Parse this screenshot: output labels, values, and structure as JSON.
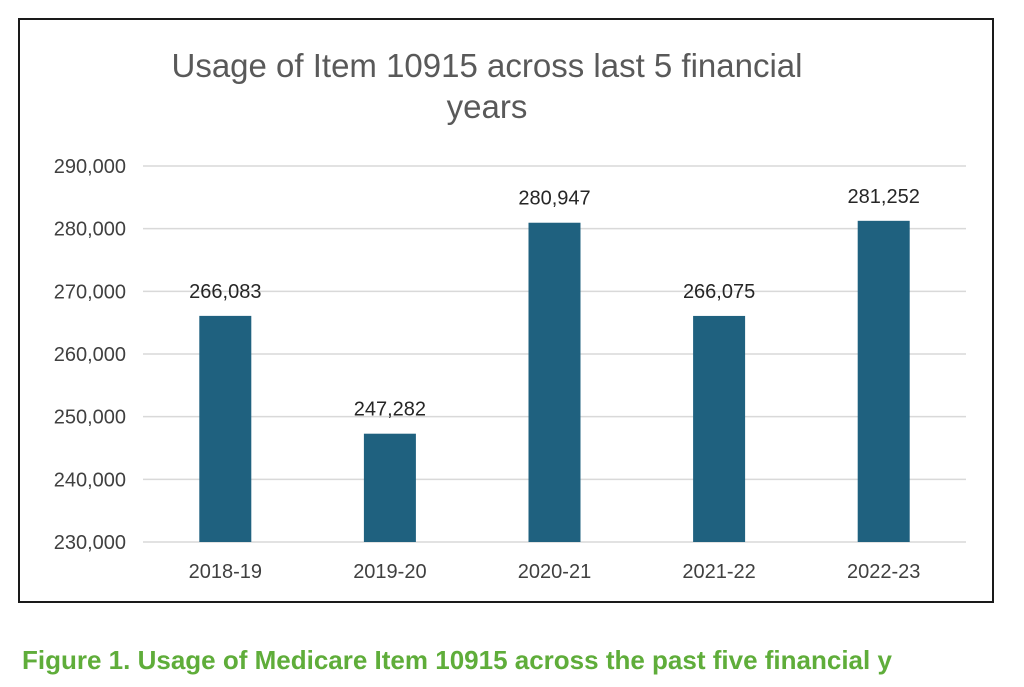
{
  "chart_data": {
    "type": "bar",
    "title": "Usage of Item 10915 across last 5 financial years",
    "title_lines": [
      "Usage of Item 10915 across last 5 financial",
      "years"
    ],
    "categories": [
      "2018-19",
      "2019-20",
      "2020-21",
      "2021-22",
      "2022-23"
    ],
    "values": [
      266083,
      247282,
      280947,
      266075,
      281252
    ],
    "data_labels": [
      "266,083",
      "247,282",
      "280,947",
      "266,075",
      "281,252"
    ],
    "xlabel": "",
    "ylabel": "",
    "ylim": [
      230000,
      290000
    ],
    "yticks": [
      230000,
      240000,
      250000,
      260000,
      270000,
      280000,
      290000
    ],
    "ytick_labels": [
      "230,000",
      "240,000",
      "250,000",
      "260,000",
      "270,000",
      "280,000",
      "290,000"
    ],
    "grid": true,
    "legend": "none",
    "bar_color": "#1f617f",
    "grid_color": "#d9d9d9"
  },
  "caption": {
    "text": "Figure 1. Usage of Medicare Item 10915 across the past five financial y",
    "color": "#5fad3a"
  }
}
